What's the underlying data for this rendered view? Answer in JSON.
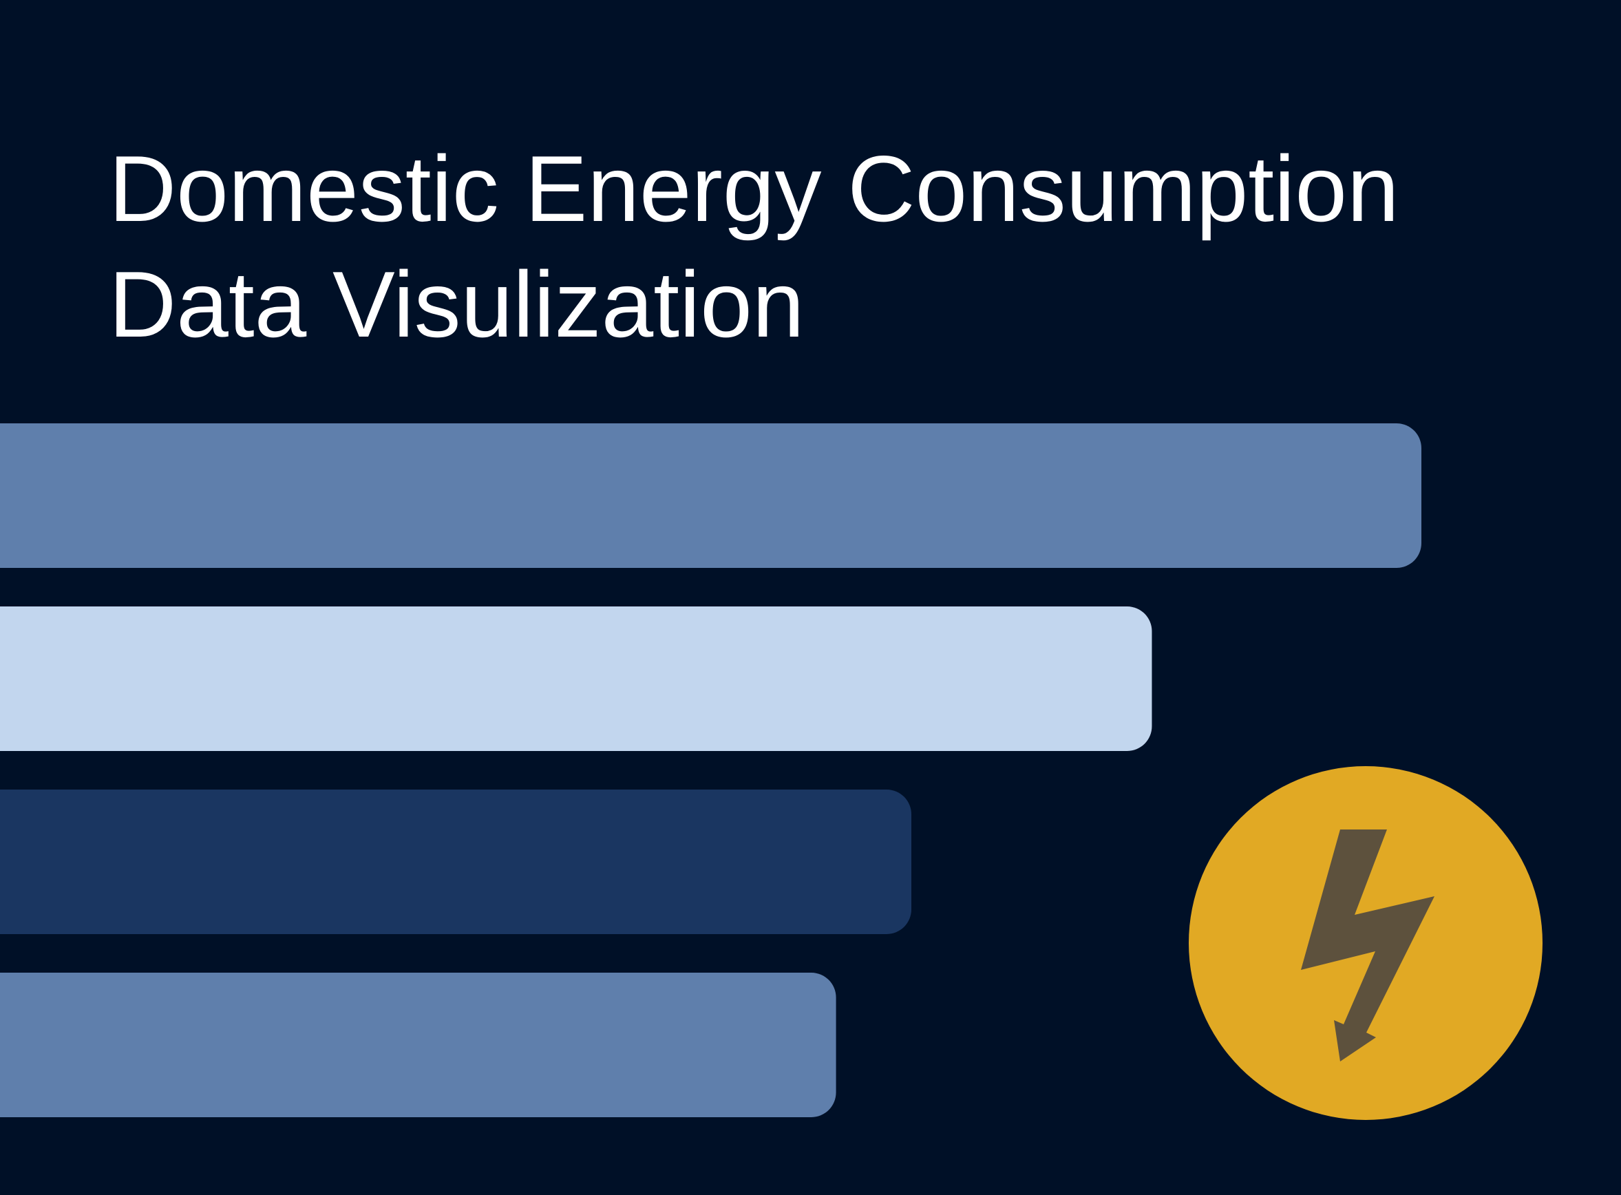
{
  "title": {
    "line1": "Domestic Energy Consumption",
    "line2": "Data Visulization"
  },
  "colors": {
    "background": "#001027",
    "title": "#ffffff",
    "bar_1": "#5f7fac",
    "bar_2": "#c2d6ee",
    "bar_3": "#1a3661",
    "bar_4": "#5f7fac",
    "badge_circle": "#e1a924",
    "badge_icon": "#5d513d"
  },
  "icons": {
    "badge": "lightning-bolt-icon"
  },
  "chart_data": {
    "type": "bar",
    "orientation": "horizontal",
    "values": [
      100,
      81.4,
      64.8,
      59.6
    ],
    "xlim": [
      0,
      100
    ],
    "title": "Domestic Energy Consumption Data Visulization",
    "xlabel": "",
    "ylabel": "",
    "grid": false,
    "legend": "none"
  }
}
